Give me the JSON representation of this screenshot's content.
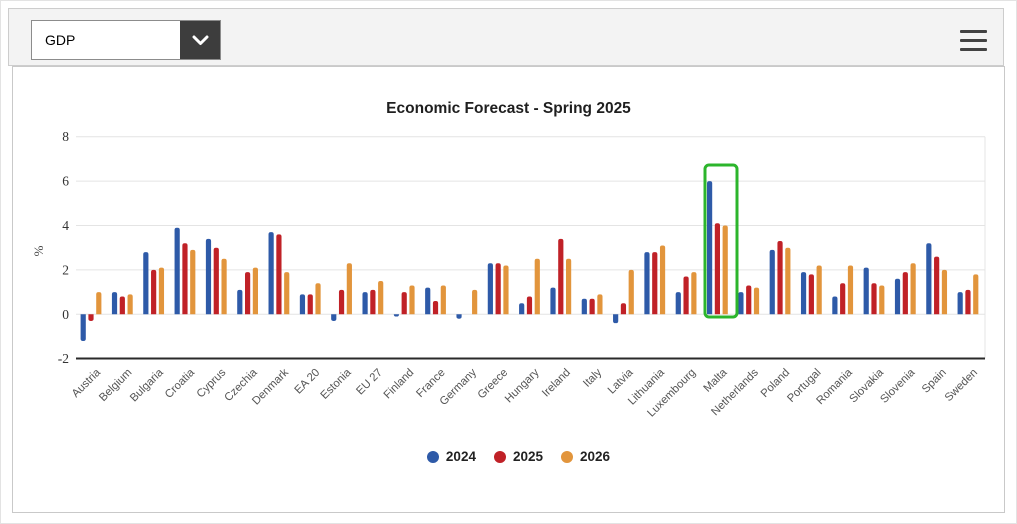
{
  "toolbar": {
    "dropdown": {
      "value": "GDP"
    }
  },
  "chart_data": {
    "type": "bar",
    "title": "Economic Forecast - Spring 2025",
    "xlabel": "",
    "ylabel": "%",
    "ylim": [
      -2,
      8
    ],
    "yticks": [
      8,
      6,
      4,
      2,
      0,
      -2
    ],
    "grid": true,
    "legend_position": "bottom",
    "highlighted_category": "Malta",
    "highlight_color": "#2CB52C",
    "categories": [
      "Austria",
      "Belgium",
      "Bulgaria",
      "Croatia",
      "Cyprus",
      "Czechia",
      "Denmark",
      "EA 20",
      "Estonia",
      "EU 27",
      "Finland",
      "France",
      "Germany",
      "Greece",
      "Hungary",
      "Ireland",
      "Italy",
      "Latvia",
      "Lithuania",
      "Luxembourg",
      "Malta",
      "Netherlands",
      "Poland",
      "Portugal",
      "Romania",
      "Slovakia",
      "Slovenia",
      "Spain",
      "Sweden"
    ],
    "series": [
      {
        "name": "2024",
        "color": "#2E5AA8",
        "values": [
          -1.2,
          1.0,
          2.8,
          3.9,
          3.4,
          1.1,
          3.7,
          0.9,
          -0.3,
          1.0,
          -0.1,
          1.2,
          -0.2,
          2.3,
          0.5,
          1.2,
          0.7,
          -0.4,
          2.8,
          1.0,
          6.0,
          1.0,
          2.9,
          1.9,
          0.8,
          2.1,
          1.6,
          3.2,
          1.0
        ]
      },
      {
        "name": "2025",
        "color": "#C02127",
        "values": [
          -0.3,
          0.8,
          2.0,
          3.2,
          3.0,
          1.9,
          3.6,
          0.9,
          1.1,
          1.1,
          1.0,
          0.6,
          0.0,
          2.3,
          0.8,
          3.4,
          0.7,
          0.5,
          2.8,
          1.7,
          4.1,
          1.3,
          3.3,
          1.8,
          1.4,
          1.4,
          1.9,
          2.6,
          1.1
        ]
      },
      {
        "name": "2026",
        "color": "#E2953C",
        "values": [
          1.0,
          0.9,
          2.1,
          2.9,
          2.5,
          2.1,
          1.9,
          1.4,
          2.3,
          1.5,
          1.3,
          1.3,
          1.1,
          2.2,
          2.5,
          2.5,
          0.9,
          2.0,
          3.1,
          1.9,
          4.0,
          1.2,
          3.0,
          2.2,
          2.2,
          1.3,
          2.3,
          2.0,
          1.8
        ]
      }
    ]
  }
}
